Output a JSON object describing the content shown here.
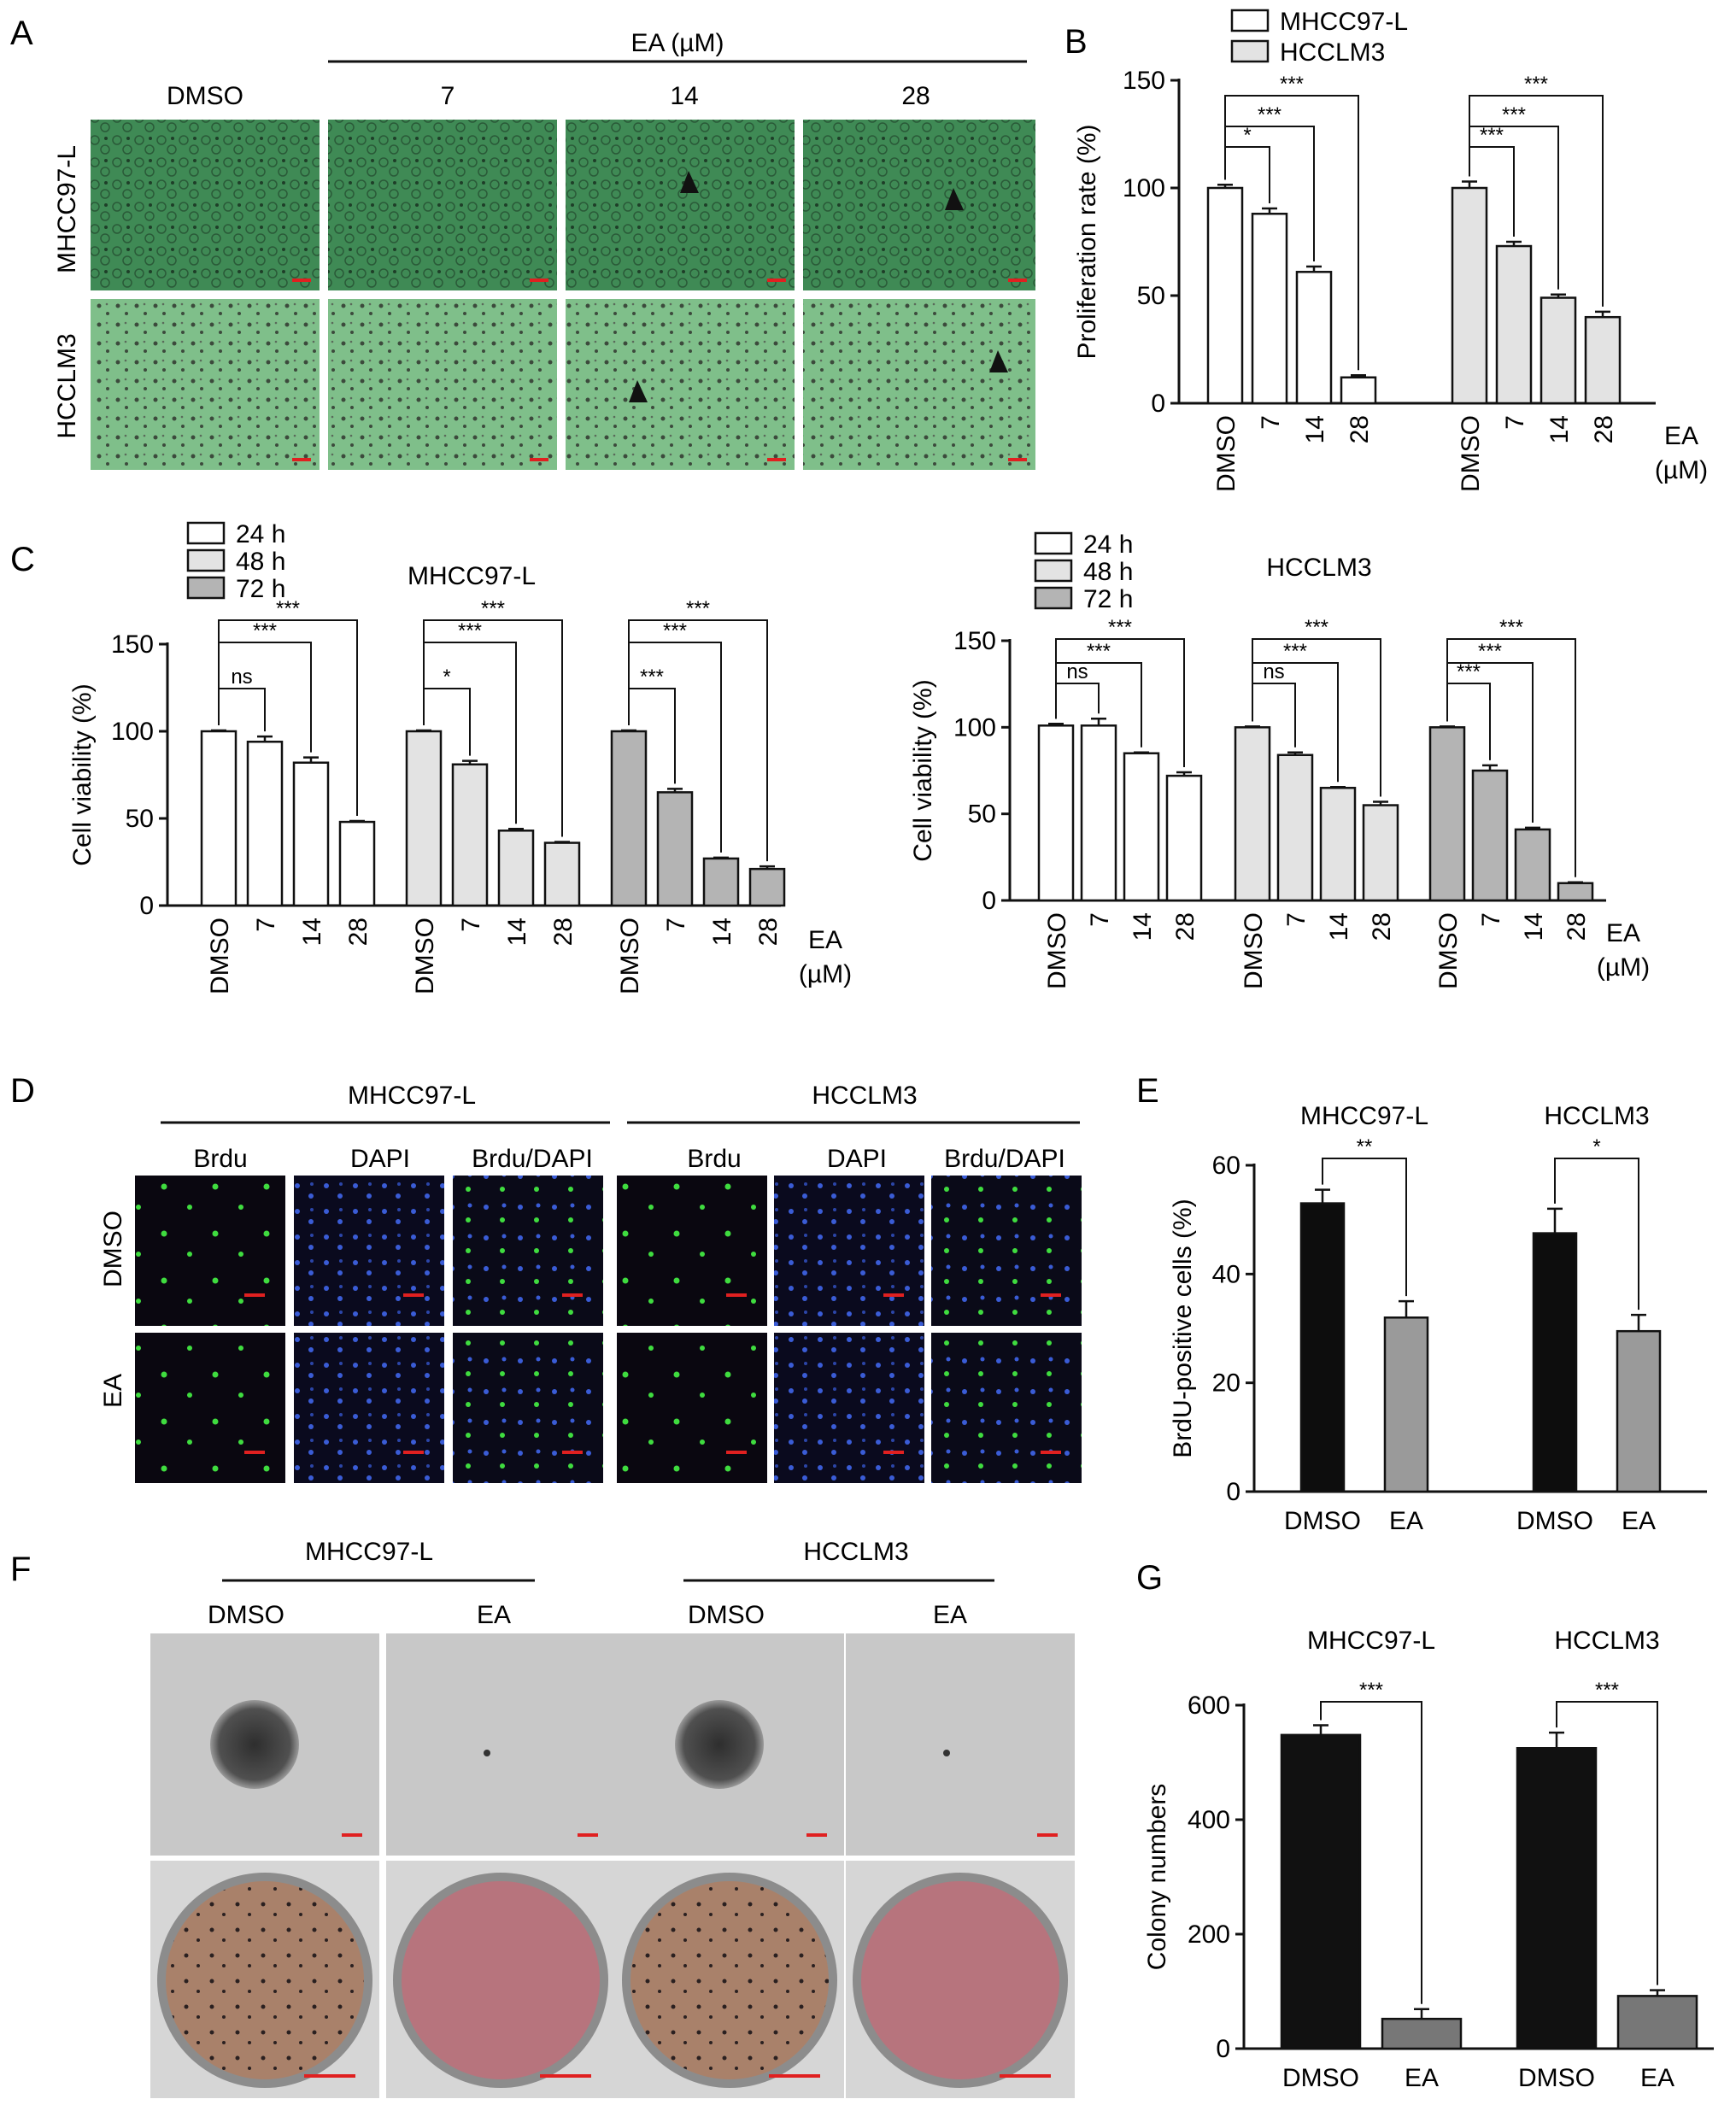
{
  "panels": {
    "A": "A",
    "B": "B",
    "C": "C",
    "D": "D",
    "E": "E",
    "F": "F",
    "G": "G"
  },
  "panel_a": {
    "treatment_label": "EA (µM)",
    "columns": [
      "DMSO",
      "7",
      "14",
      "28"
    ],
    "rows": [
      "MHCC97-L",
      "HCCLM3"
    ],
    "colors": {
      "top_row": "#3f8a55",
      "bottom_row": "#7fbf8a",
      "scale_bar": "#e02020"
    }
  },
  "panel_d": {
    "groups": [
      "MHCC97-L",
      "HCCLM3"
    ],
    "columns": [
      "Brdu",
      "DAPI",
      "Brdu/DAPI"
    ],
    "rows": [
      "DMSO",
      "EA"
    ],
    "colors": {
      "background": "#0a0710",
      "brdu": "#3fdc3f",
      "dapi": "#3a5cd6"
    }
  },
  "panel_f": {
    "groups": [
      "MHCC97-L",
      "HCCLM3"
    ],
    "columns": [
      "DMSO",
      "EA",
      "DMSO",
      "EA"
    ],
    "colors": {
      "colony_bg": "#c8c8c8",
      "dish": "#b7747d",
      "scale_bar": "#e02020"
    }
  },
  "chart_data": [
    {
      "id": "B",
      "type": "bar",
      "ylabel": "Proliferation rate (%)",
      "xunit": [
        "EA",
        "(µM)"
      ],
      "ylim": [
        0,
        150
      ],
      "yticks": [
        0,
        50,
        100,
        150
      ],
      "legend": [
        {
          "name": "MHCC97-L",
          "color": "#ffffff"
        },
        {
          "name": "HCCLM3",
          "color": "#e3e3e3"
        }
      ],
      "legend_position": "top-center",
      "groups": [
        {
          "name": "MHCC97-L",
          "categories": [
            "DMSO",
            "7",
            "14",
            "28"
          ],
          "values": [
            100,
            88,
            61,
            12
          ],
          "errors": [
            1.5,
            2.5,
            2.5,
            1
          ],
          "color": "#ffffff",
          "comparisons": [
            {
              "to": 1,
              "label": "*"
            },
            {
              "to": 2,
              "label": "***"
            },
            {
              "to": 3,
              "label": "***"
            }
          ]
        },
        {
          "name": "HCCLM3",
          "categories": [
            "DMSO",
            "7",
            "14",
            "28"
          ],
          "values": [
            100,
            73,
            49,
            40
          ],
          "errors": [
            3,
            2,
            1.5,
            2.5
          ],
          "color": "#e3e3e3",
          "comparisons": [
            {
              "to": 1,
              "label": "***"
            },
            {
              "to": 2,
              "label": "***"
            },
            {
              "to": 3,
              "label": "***"
            }
          ]
        }
      ]
    },
    {
      "id": "C1",
      "type": "bar",
      "title": "MHCC97-L",
      "ylabel": "Cell viability (%)",
      "xunit": [
        "EA",
        "(µM)"
      ],
      "ylim": [
        0,
        150
      ],
      "yticks": [
        0,
        50,
        100,
        150
      ],
      "legend": [
        {
          "name": "24 h",
          "color": "#ffffff"
        },
        {
          "name": "48 h",
          "color": "#e3e3e3"
        },
        {
          "name": "72 h",
          "color": "#b4b4b4"
        }
      ],
      "legend_position": "top-left",
      "groups": [
        {
          "name": "24 h",
          "categories": [
            "DMSO",
            "7",
            "14",
            "28"
          ],
          "values": [
            100,
            94,
            82,
            48
          ],
          "errors": [
            0.5,
            3,
            3,
            0.5
          ],
          "color": "#ffffff",
          "comparisons": [
            {
              "to": 1,
              "label": "ns"
            },
            {
              "to": 2,
              "label": "***"
            },
            {
              "to": 3,
              "label": "***"
            }
          ]
        },
        {
          "name": "48 h",
          "categories": [
            "DMSO",
            "7",
            "14",
            "28"
          ],
          "values": [
            100,
            81,
            43,
            36
          ],
          "errors": [
            0.5,
            2,
            1,
            0.5
          ],
          "color": "#e3e3e3",
          "comparisons": [
            {
              "to": 1,
              "label": "*"
            },
            {
              "to": 2,
              "label": "***"
            },
            {
              "to": 3,
              "label": "***"
            }
          ]
        },
        {
          "name": "72 h",
          "categories": [
            "DMSO",
            "7",
            "14",
            "28"
          ],
          "values": [
            100,
            65,
            27,
            21
          ],
          "errors": [
            0.5,
            2,
            0.5,
            1.5
          ],
          "color": "#b4b4b4",
          "comparisons": [
            {
              "to": 1,
              "label": "***"
            },
            {
              "to": 2,
              "label": "***"
            },
            {
              "to": 3,
              "label": "***"
            }
          ]
        }
      ]
    },
    {
      "id": "C2",
      "type": "bar",
      "title": "HCCLM3",
      "ylabel": "Cell viability (%)",
      "xunit": [
        "EA",
        "(µM)"
      ],
      "ylim": [
        0,
        150
      ],
      "yticks": [
        0,
        50,
        100,
        150
      ],
      "legend": [
        {
          "name": "24 h",
          "color": "#ffffff"
        },
        {
          "name": "48 h",
          "color": "#e3e3e3"
        },
        {
          "name": "72 h",
          "color": "#b4b4b4"
        }
      ],
      "legend_position": "top-left",
      "groups": [
        {
          "name": "24 h",
          "categories": [
            "DMSO",
            "7",
            "14",
            "28"
          ],
          "values": [
            101,
            101,
            85,
            72
          ],
          "errors": [
            1,
            4,
            0.5,
            2
          ],
          "color": "#ffffff",
          "comparisons": [
            {
              "to": 1,
              "label": "ns"
            },
            {
              "to": 2,
              "label": "***"
            },
            {
              "to": 3,
              "label": "***"
            }
          ]
        },
        {
          "name": "48 h",
          "categories": [
            "DMSO",
            "7",
            "14",
            "28"
          ],
          "values": [
            100,
            84,
            65,
            55
          ],
          "errors": [
            0.5,
            1.5,
            0.5,
            2
          ],
          "color": "#e3e3e3",
          "comparisons": [
            {
              "to": 1,
              "label": "ns"
            },
            {
              "to": 2,
              "label": "***"
            },
            {
              "to": 3,
              "label": "***"
            }
          ]
        },
        {
          "name": "72 h",
          "categories": [
            "DMSO",
            "7",
            "14",
            "28"
          ],
          "values": [
            100,
            75,
            41,
            10
          ],
          "errors": [
            0.5,
            3,
            1,
            0.5
          ],
          "color": "#b4b4b4",
          "comparisons": [
            {
              "to": 1,
              "label": "***"
            },
            {
              "to": 2,
              "label": "***"
            },
            {
              "to": 3,
              "label": "***"
            }
          ]
        }
      ]
    },
    {
      "id": "E",
      "type": "bar",
      "ylabel": "BrdU-positive cells (%)",
      "ylim": [
        0,
        60
      ],
      "yticks": [
        0,
        20,
        40,
        60
      ],
      "groups": [
        {
          "name": "MHCC97-L",
          "categories": [
            "DMSO",
            "EA"
          ],
          "values": [
            53,
            32
          ],
          "errors": [
            2.5,
            3
          ],
          "colors": [
            "#0d0d0d",
            "#9a9a9a"
          ],
          "comparisons": [
            {
              "to": 1,
              "label": "**"
            }
          ]
        },
        {
          "name": "HCCLM3",
          "categories": [
            "DMSO",
            "EA"
          ],
          "values": [
            47.5,
            29.5
          ],
          "errors": [
            4.5,
            3
          ],
          "colors": [
            "#0d0d0d",
            "#9a9a9a"
          ],
          "comparisons": [
            {
              "to": 1,
              "label": "*"
            }
          ]
        }
      ]
    },
    {
      "id": "G",
      "type": "bar",
      "ylabel": "Colony numbers",
      "ylim": [
        0,
        600
      ],
      "yticks": [
        0,
        200,
        400,
        600
      ],
      "groups": [
        {
          "name": "MHCC97-L",
          "categories": [
            "DMSO",
            "EA"
          ],
          "values": [
            548,
            52
          ],
          "errors": [
            17,
            17
          ],
          "colors": [
            "#111111",
            "#777777"
          ],
          "comparisons": [
            {
              "to": 1,
              "label": "***"
            }
          ]
        },
        {
          "name": "HCCLM3",
          "categories": [
            "DMSO",
            "EA"
          ],
          "values": [
            525,
            92
          ],
          "errors": [
            27,
            10
          ],
          "colors": [
            "#111111",
            "#777777"
          ],
          "comparisons": [
            {
              "to": 1,
              "label": "***"
            }
          ]
        }
      ]
    }
  ]
}
